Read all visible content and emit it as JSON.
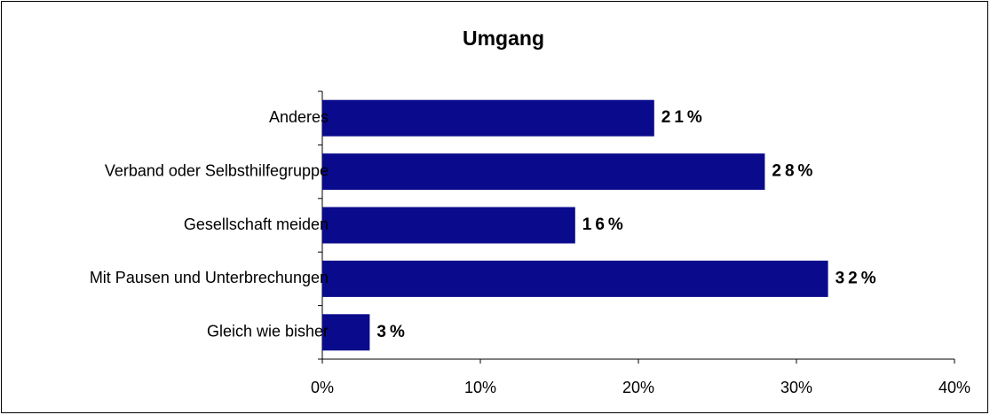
{
  "chart_data": {
    "type": "barh",
    "title": "Umgang",
    "categories": [
      "Anderes",
      "Verband oder Selbsthilfegruppe",
      "Gesellschaft meiden",
      "Mit Pausen und Unterbrechungen",
      "Gleich wie bisher"
    ],
    "values": [
      21,
      28,
      16,
      32,
      3
    ],
    "value_labels": [
      "21%",
      "28%",
      "16%",
      "32%",
      "3%"
    ],
    "color": "#0a0a8c",
    "xlim": [
      0,
      40
    ],
    "xticks": [
      {
        "value": 0,
        "label": "0%"
      },
      {
        "value": 10,
        "label": "10%"
      },
      {
        "value": 20,
        "label": "20%"
      },
      {
        "value": 30,
        "label": "30%"
      },
      {
        "value": 40,
        "label": "40%"
      }
    ],
    "grid": false
  }
}
